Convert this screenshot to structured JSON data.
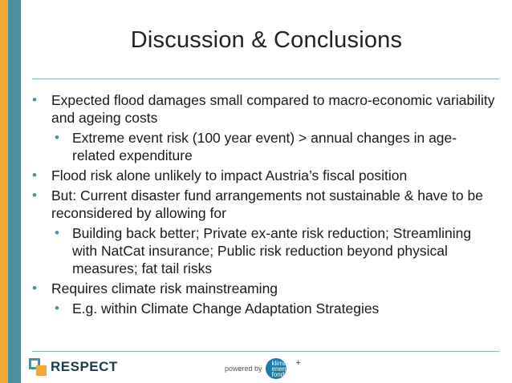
{
  "slide": {
    "title": "Discussion & Conclusions",
    "bullets": [
      {
        "level": 1,
        "text": "Expected flood damages small compared to macro-economic variability and ageing costs"
      },
      {
        "level": 2,
        "text": "Extreme event risk (100 year event) > annual changes in age-related expenditure"
      },
      {
        "level": 1,
        "text": "Flood risk alone unlikely to impact Austria’s fiscal position"
      },
      {
        "level": 1,
        "text": "But: Current disaster fund arrangements not sustainable & have to be reconsidered by allowing for"
      },
      {
        "level": 2,
        "text": "Building back better; Private ex-ante risk reduction; Streamlining with NatCat insurance; Public risk reduction beyond physical measures; fat tail risks"
      },
      {
        "level": 1,
        "text": "Requires climate risk mainstreaming"
      },
      {
        "level": 2,
        "text": "E.g. within Climate Change Adaptation Strategies"
      }
    ]
  },
  "footer": {
    "logo_text": "RESPECT",
    "powered_by": "powered by",
    "partner_logo_text": "klima energie fonds",
    "partner_plus": "+"
  },
  "colors": {
    "accent_teal": "#4a90a4",
    "accent_orange": "#f3a735"
  }
}
